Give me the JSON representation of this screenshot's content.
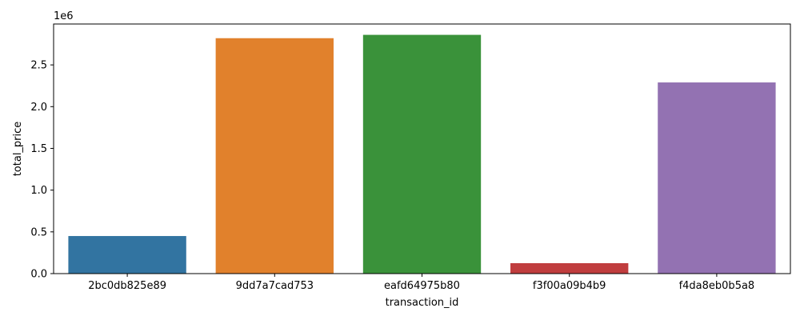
{
  "chart_data": {
    "type": "bar",
    "title": "",
    "xlabel": "transaction_id",
    "ylabel": "total_price",
    "offset_text": "1e6",
    "categories": [
      "2bc0db825e89",
      "9dd7a7cad753",
      "eafd64975b80",
      "f3f00a09b4b9",
      "f4da8eb0b5a8"
    ],
    "values": [
      450000,
      2820000,
      2860000,
      125000,
      2290000
    ],
    "colors": [
      "#3274a1",
      "#e1812c",
      "#3a923a",
      "#c03d3e",
      "#9372b2"
    ],
    "ylim": [
      0,
      2990000
    ],
    "yticks": [
      0,
      500000,
      1000000,
      1500000,
      2000000,
      2500000
    ],
    "ytick_labels": [
      "0.0",
      "0.5",
      "1.0",
      "1.5",
      "2.0",
      "2.5"
    ],
    "grid": false,
    "legend": "none"
  }
}
